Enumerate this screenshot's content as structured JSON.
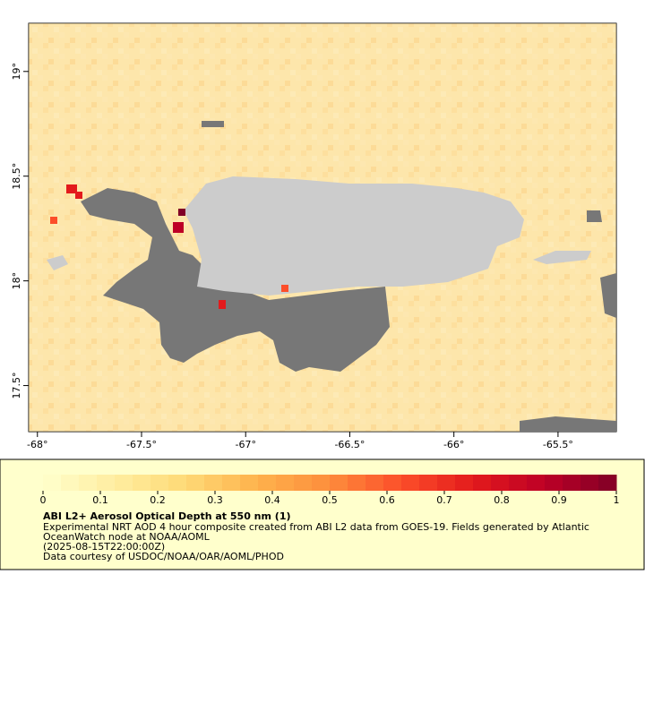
{
  "map": {
    "xlim": [
      -68.042,
      -65.22
    ],
    "ylim": [
      17.28,
      19.23
    ],
    "xticks": [
      {
        "value": -68,
        "label": "-68°"
      },
      {
        "value": -67.5,
        "label": "-67.5°"
      },
      {
        "value": -67,
        "label": "-67°"
      },
      {
        "value": -66.5,
        "label": "-66.5°"
      },
      {
        "value": -66,
        "label": "-66°"
      },
      {
        "value": -65.5,
        "label": "-65.5°"
      }
    ],
    "yticks": [
      {
        "value": 17.5,
        "label": "17.5°"
      },
      {
        "value": 18,
        "label": "18°"
      },
      {
        "value": 18.5,
        "label": "18.5°"
      },
      {
        "value": 19,
        "label": "19°"
      }
    ]
  },
  "colorbar": {
    "range": [
      0,
      1
    ],
    "ticks": [
      0,
      0.1,
      0.2,
      0.3,
      0.4,
      0.5,
      0.6,
      0.7,
      0.8,
      0.9,
      1
    ],
    "colors": [
      "#ffffcc",
      "#ffeda0",
      "#fed976",
      "#feb24c",
      "#fd8d3c",
      "#fc4e2a",
      "#e31a1c",
      "#bd0026",
      "#800026"
    ]
  },
  "caption": {
    "title": "ABI L2+ Aerosol Optical Depth at 550 nm (1)",
    "lines": [
      "Experimental NRT AOD 4 hour composite created from ABI L2 data from GOES-19. Fields generated by Atlantic",
      "OceanWatch node at NOAA/AOML",
      "(2025-08-15T22:00:00Z)",
      "Data courtesy of USDOC/NOAA/OAR/AOML/PHOD"
    ]
  }
}
